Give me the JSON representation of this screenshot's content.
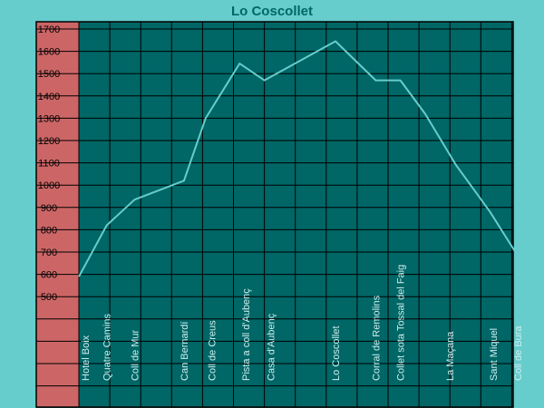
{
  "chart_data": {
    "type": "line",
    "title": "Lo Coscollet",
    "xlabel": "",
    "ylabel": "",
    "ylim": [
      -200,
      1700
    ],
    "y_ticks": [
      500,
      600,
      700,
      800,
      900,
      1000,
      1100,
      1200,
      1300,
      1400,
      1500,
      1600,
      1700
    ],
    "grid": true,
    "legend": "none",
    "colors": {
      "background": "#66cccc",
      "plot_area": "#006666",
      "y_axis_band": "#cc6666",
      "grid": "#000000",
      "line": "#66cccc",
      "title": "#006666",
      "x_labels": "#cfeeee"
    },
    "series": [
      {
        "points": [
          {
            "x": 0.0,
            "y": 590
          },
          {
            "x": 0.9,
            "y": 820
          },
          {
            "x": 1.8,
            "y": 935
          },
          {
            "x": 3.4,
            "y": 1020
          },
          {
            "x": 4.1,
            "y": 1300
          },
          {
            "x": 5.2,
            "y": 1545
          },
          {
            "x": 6.0,
            "y": 1470
          },
          {
            "x": 8.3,
            "y": 1645
          },
          {
            "x": 9.6,
            "y": 1470
          },
          {
            "x": 10.4,
            "y": 1470
          },
          {
            "x": 11.2,
            "y": 1320
          },
          {
            "x": 12.2,
            "y": 1090
          },
          {
            "x": 13.3,
            "y": 880
          },
          {
            "x": 14.3,
            "y": 660
          }
        ]
      }
    ],
    "waypoints": [
      {
        "label": "Hotel Boix",
        "x": 0.2
      },
      {
        "label": "Quatre Camins",
        "x": 0.9
      },
      {
        "label": "Coll de Mur",
        "x": 1.8
      },
      {
        "label": "Can Bernardí",
        "x": 3.4
      },
      {
        "label": "Coll de Creus",
        "x": 4.3
      },
      {
        "label": "Pista a coll d'Aubenç",
        "x": 5.4
      },
      {
        "label": "Casa d'Aubenç",
        "x": 6.2
      },
      {
        "label": "Lo Coscollet",
        "x": 8.3
      },
      {
        "label": "Corral de Remolins",
        "x": 9.6
      },
      {
        "label": "Collet sota Tossal del Faig",
        "x": 10.4
      },
      {
        "label": "La Maçana",
        "x": 12.0
      },
      {
        "label": "Sant Miquel",
        "x": 13.4
      },
      {
        "label": "Coll de Bura",
        "x": 14.2
      }
    ]
  }
}
